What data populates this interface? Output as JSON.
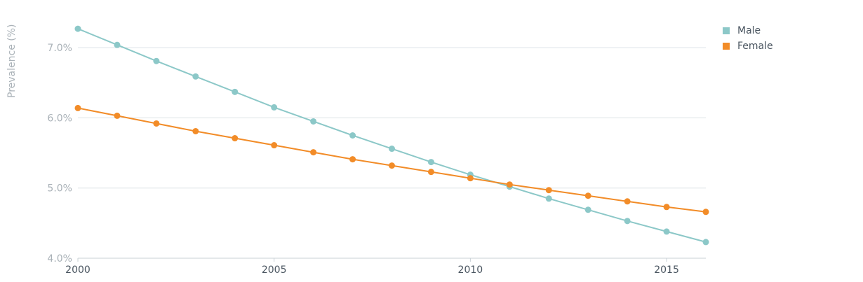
{
  "chart_data": {
    "type": "line",
    "title": "",
    "xlabel": "",
    "ylabel": "Prevalence (%)",
    "x": [
      2000,
      2001,
      2002,
      2003,
      2004,
      2005,
      2006,
      2007,
      2008,
      2009,
      2010,
      2011,
      2012,
      2013,
      2014,
      2015,
      2016
    ],
    "xlim": [
      2000,
      2016
    ],
    "ylim": [
      4.0,
      7.5
    ],
    "x_ticks": [
      2000,
      2005,
      2010,
      2015
    ],
    "x_tick_labels": [
      "2000",
      "2005",
      "2010",
      "2015"
    ],
    "y_ticks": [
      4.0,
      5.0,
      6.0,
      7.0
    ],
    "y_tick_labels": [
      "4.0%",
      "5.0%",
      "6.0%",
      "7.0%"
    ],
    "grid": "horizontal",
    "legend_position": "top-right",
    "series": [
      {
        "name": "Male",
        "color": "#8cc8c8",
        "values": [
          7.27,
          7.04,
          6.81,
          6.59,
          6.37,
          6.15,
          5.95,
          5.75,
          5.56,
          5.37,
          5.19,
          5.02,
          4.85,
          4.69,
          4.53,
          4.38,
          4.23
        ]
      },
      {
        "name": "Female",
        "color": "#f28c28",
        "values": [
          6.14,
          6.03,
          5.92,
          5.81,
          5.71,
          5.61,
          5.51,
          5.41,
          5.32,
          5.23,
          5.14,
          5.05,
          4.97,
          4.89,
          4.81,
          4.73,
          4.66
        ]
      }
    ]
  }
}
